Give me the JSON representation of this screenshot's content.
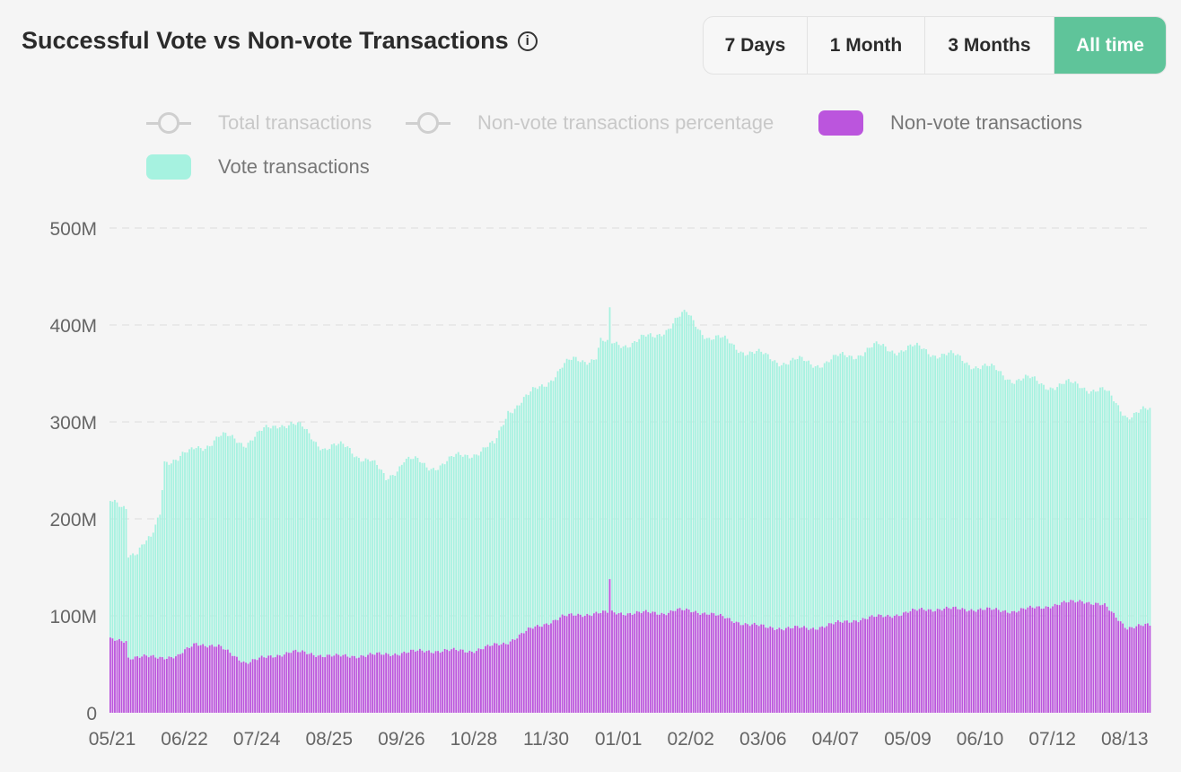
{
  "header": {
    "title": "Successful Vote vs Non-vote Transactions",
    "info_symbol": "i"
  },
  "range_buttons": [
    {
      "label": "7 Days",
      "active": false
    },
    {
      "label": "1 Month",
      "active": false
    },
    {
      "label": "3 Months",
      "active": false
    },
    {
      "label": "All time",
      "active": true
    }
  ],
  "legend": [
    {
      "label": "Total transactions",
      "type": "line",
      "enabled": false
    },
    {
      "label": "Non-vote transactions percentage",
      "type": "line",
      "enabled": false
    },
    {
      "label": "Non-vote transactions",
      "type": "box",
      "enabled": true,
      "color": "#bb55dd"
    },
    {
      "label": "Vote transactions",
      "type": "box",
      "enabled": true,
      "color": "#a6f2e0"
    }
  ],
  "colors": {
    "vote": "#a6f2e0",
    "nonvote": "#bb55dd",
    "active_button": "#5fc49a",
    "grid": "#dddddd"
  },
  "chart_data": {
    "type": "bar",
    "stacked": true,
    "ylim": [
      0,
      500000000
    ],
    "y_ticks": [
      "0",
      "100M",
      "200M",
      "300M",
      "400M",
      "500M"
    ],
    "x_ticks": [
      "05/21",
      "06/22",
      "07/24",
      "08/25",
      "09/26",
      "10/28",
      "11/30",
      "01/01",
      "02/02",
      "03/06",
      "04/07",
      "05/09",
      "06/10",
      "07/12",
      "08/13"
    ],
    "grid": "horizontal dashed",
    "series": [
      {
        "name": "Non-vote transactions",
        "keyframes_day_value_millions": [
          [
            0,
            75
          ],
          [
            7,
            75
          ],
          [
            8,
            57
          ],
          [
            30,
            58
          ],
          [
            38,
            72
          ],
          [
            48,
            68
          ],
          [
            60,
            52
          ],
          [
            80,
            63
          ],
          [
            100,
            58
          ],
          [
            120,
            60
          ],
          [
            140,
            64
          ],
          [
            160,
            64
          ],
          [
            175,
            72
          ],
          [
            185,
            85
          ],
          [
            200,
            99
          ],
          [
            215,
            103
          ],
          [
            220,
            103
          ],
          [
            221,
            137
          ],
          [
            222,
            103
          ],
          [
            245,
            103
          ],
          [
            250,
            106
          ],
          [
            265,
            103
          ],
          [
            275,
            95
          ],
          [
            290,
            88
          ],
          [
            310,
            87
          ],
          [
            330,
            96
          ],
          [
            350,
            102
          ],
          [
            360,
            107
          ],
          [
            380,
            107
          ],
          [
            400,
            105
          ],
          [
            420,
            112
          ],
          [
            430,
            116
          ],
          [
            440,
            110
          ],
          [
            450,
            88
          ],
          [
            460,
            90
          ]
        ]
      },
      {
        "name": "Vote transactions",
        "keyframes_day_value_millions": [
          [
            0,
            140
          ],
          [
            7,
            140
          ],
          [
            8,
            110
          ],
          [
            12,
            108
          ],
          [
            18,
            120
          ],
          [
            22,
            150
          ],
          [
            24,
            205
          ],
          [
            35,
            200
          ],
          [
            45,
            210
          ],
          [
            55,
            225
          ],
          [
            65,
            230
          ],
          [
            75,
            240
          ],
          [
            85,
            230
          ],
          [
            95,
            215
          ],
          [
            105,
            215
          ],
          [
            115,
            200
          ],
          [
            122,
            180
          ],
          [
            130,
            200
          ],
          [
            140,
            190
          ],
          [
            150,
            195
          ],
          [
            160,
            205
          ],
          [
            170,
            205
          ],
          [
            176,
            240
          ],
          [
            185,
            240
          ],
          [
            195,
            252
          ],
          [
            205,
            262
          ],
          [
            215,
            265
          ],
          [
            217,
            280
          ],
          [
            220,
            275
          ],
          [
            230,
            280
          ],
          [
            240,
            283
          ],
          [
            245,
            293
          ],
          [
            255,
            305
          ],
          [
            265,
            285
          ],
          [
            275,
            285
          ],
          [
            285,
            280
          ],
          [
            300,
            275
          ],
          [
            320,
            272
          ],
          [
            340,
            278
          ],
          [
            360,
            268
          ],
          [
            380,
            255
          ],
          [
            400,
            240
          ],
          [
            420,
            225
          ],
          [
            440,
            220
          ],
          [
            450,
            220
          ],
          [
            460,
            220
          ]
        ]
      }
    ],
    "x_range_days": [
      0,
      460
    ]
  }
}
